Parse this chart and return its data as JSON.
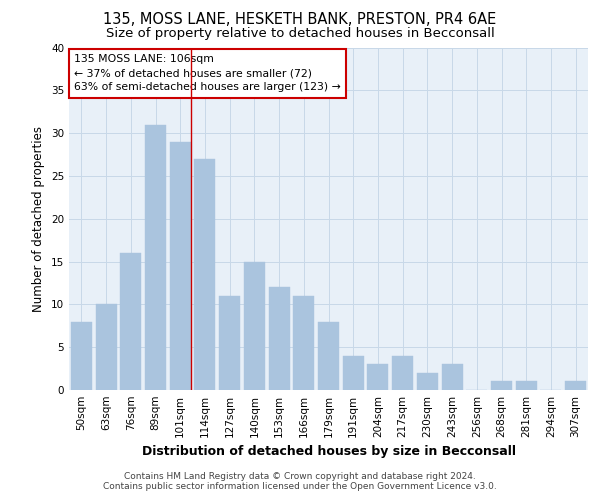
{
  "title1": "135, MOSS LANE, HESKETH BANK, PRESTON, PR4 6AE",
  "title2": "Size of property relative to detached houses in Becconsall",
  "xlabel": "Distribution of detached houses by size in Becconsall",
  "ylabel": "Number of detached properties",
  "categories": [
    "50sqm",
    "63sqm",
    "76sqm",
    "89sqm",
    "101sqm",
    "114sqm",
    "127sqm",
    "140sqm",
    "153sqm",
    "166sqm",
    "179sqm",
    "191sqm",
    "204sqm",
    "217sqm",
    "230sqm",
    "243sqm",
    "256sqm",
    "268sqm",
    "281sqm",
    "294sqm",
    "307sqm"
  ],
  "values": [
    8,
    10,
    16,
    31,
    29,
    27,
    11,
    15,
    12,
    11,
    8,
    4,
    3,
    4,
    2,
    3,
    0,
    1,
    1,
    0,
    1
  ],
  "bar_color": "#aac4de",
  "bar_edgecolor": "#aac4de",
  "vline_x": 4.42,
  "vline_color": "#cc0000",
  "annotation_text": "135 MOSS LANE: 106sqm\n← 37% of detached houses are smaller (72)\n63% of semi-detached houses are larger (123) →",
  "annotation_box_edgecolor": "#cc0000",
  "annotation_box_facecolor": "white",
  "ylim": [
    0,
    40
  ],
  "yticks": [
    0,
    5,
    10,
    15,
    20,
    25,
    30,
    35,
    40
  ],
  "grid_color": "#c8d8e8",
  "background_color": "#e8f0f8",
  "footer1": "Contains HM Land Registry data © Crown copyright and database right 2024.",
  "footer2": "Contains public sector information licensed under the Open Government Licence v3.0.",
  "title_fontsize": 10.5,
  "subtitle_fontsize": 9.5,
  "axis_label_fontsize": 8.5,
  "tick_fontsize": 7.5,
  "footer_fontsize": 6.5,
  "annot_fontsize": 7.8
}
